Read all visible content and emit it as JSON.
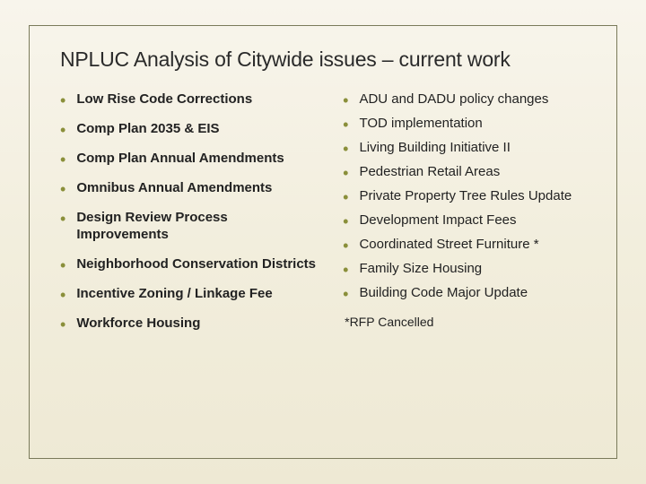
{
  "slide": {
    "title": "NPLUC Analysis of Citywide issues – current work",
    "bullet_color": "#8a8f3a",
    "title_color": "#2a2a2a",
    "text_color": "#222222",
    "background_gradient": [
      "#f8f5ec",
      "#f2eedd",
      "#eee9d4"
    ],
    "border_color": "#7a7a5a",
    "title_fontsize": 23,
    "item_fontsize": 15,
    "left_items": [
      "Low Rise Code Corrections",
      "Comp Plan 2035 & EIS",
      "Comp Plan Annual Amendments",
      "Omnibus Annual Amendments",
      "Design Review Process Improvements",
      "Neighborhood Conservation Districts",
      "Incentive Zoning /  Linkage Fee",
      "Workforce Housing"
    ],
    "right_items": [
      "ADU and DADU policy changes",
      "TOD implementation",
      "Living Building Initiative II",
      "Pedestrian Retail Areas",
      "Private Property Tree Rules Update",
      "Development Impact Fees",
      "Coordinated Street Furniture *",
      "Family Size Housing",
      "Building Code Major Update"
    ],
    "footnote": "*RFP Cancelled"
  }
}
